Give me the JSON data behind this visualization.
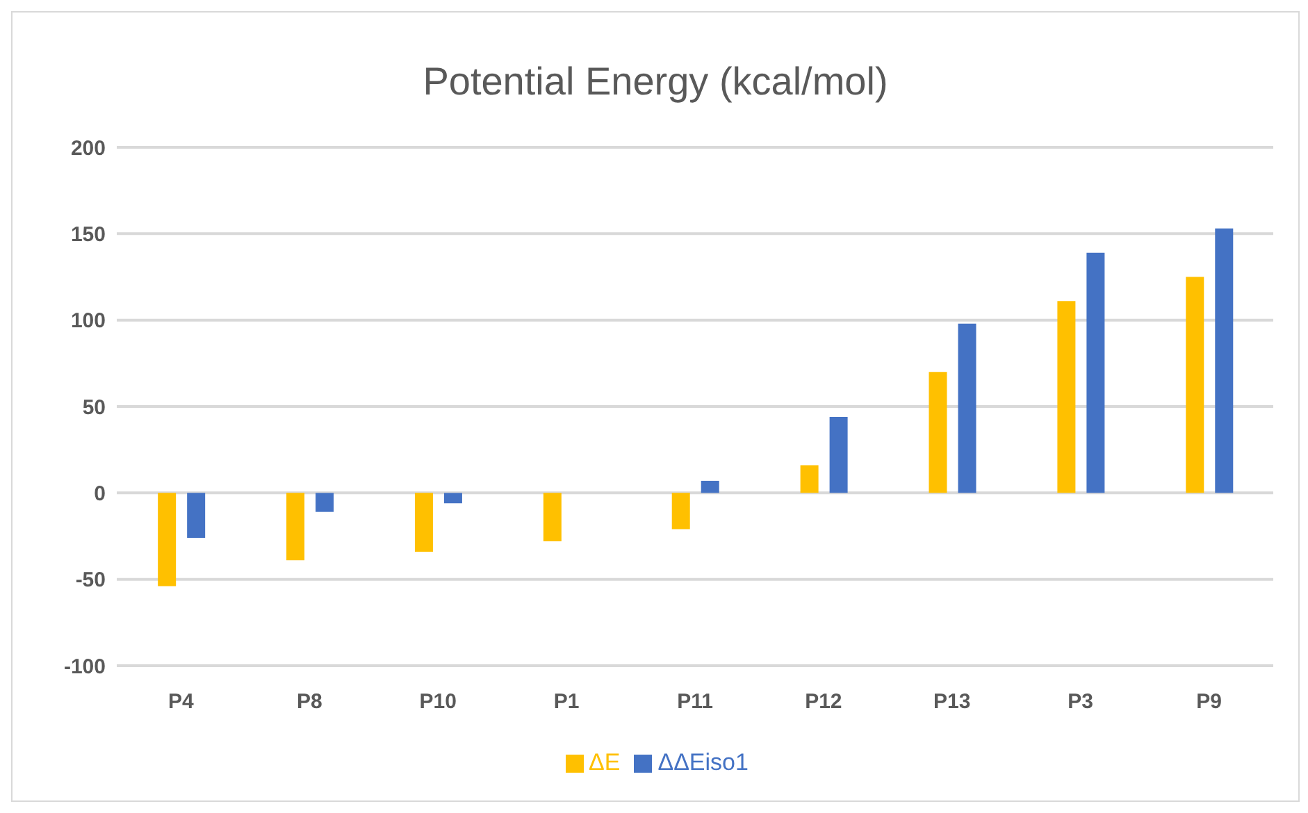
{
  "chart_data": {
    "type": "bar",
    "title": "Potential Energy (kcal/mol)",
    "categories": [
      "P4",
      "P8",
      "P10",
      "P1",
      "P11",
      "P12",
      "P13",
      "P3",
      "P9"
    ],
    "series": [
      {
        "name": "ΔE",
        "color": "#ffc000",
        "values": [
          -54,
          -39,
          -34,
          -28,
          -21,
          16,
          70,
          111,
          125
        ]
      },
      {
        "name": "ΔΔEiso1",
        "color": "#4472c4",
        "values": [
          -26,
          -11,
          -6,
          0,
          7,
          44,
          98,
          139,
          153
        ]
      }
    ],
    "ylim": [
      -100,
      200
    ],
    "yticks": [
      -100,
      -50,
      0,
      50,
      100,
      150,
      200
    ],
    "grid": "y",
    "legend": "bottom"
  }
}
